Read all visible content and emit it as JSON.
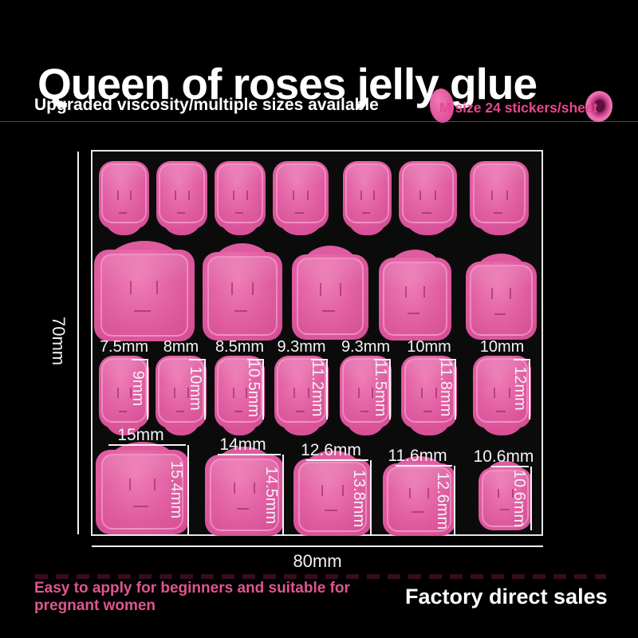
{
  "header": {
    "title": "Queen of roses jelly glue",
    "subtitle": "Upgraded viscosity/multiple sizes available",
    "badge_text": "M size 24 stickers/sheet"
  },
  "icons": {
    "badge_left": "jelly-oval-icon",
    "badge_right": "jelly-donut-icon"
  },
  "measurements": {
    "sheet_height": "70mm",
    "sheet_width": "80mm",
    "row3_widths": [
      "7.5mm",
      "8mm",
      "8.5mm",
      "9.3mm",
      "9.3mm",
      "10mm",
      "10mm"
    ],
    "row3_heights": [
      "9mm",
      "10mm",
      "10.5mm",
      "11.2mm",
      "11.5mm",
      "11.8mm",
      "12mm"
    ],
    "row4_widths": [
      "15mm",
      "14mm",
      "12.6mm",
      "11.6mm",
      "10.6mm"
    ],
    "row4_heights": [
      "15.4mm",
      "14.5mm",
      "13.8mm",
      "12.6mm",
      "10.6mm"
    ]
  },
  "footer": {
    "left_line1": "Easy to apply for beginners and suitable for",
    "left_line2": "pregnant women",
    "right": "Factory direct sales"
  },
  "colors": {
    "background": "#000000",
    "sticker_pink": "#e05da1",
    "accent_pink": "#e8478d",
    "label_white": "#f3f3f3",
    "sheet_border": "#e6e6e6"
  }
}
